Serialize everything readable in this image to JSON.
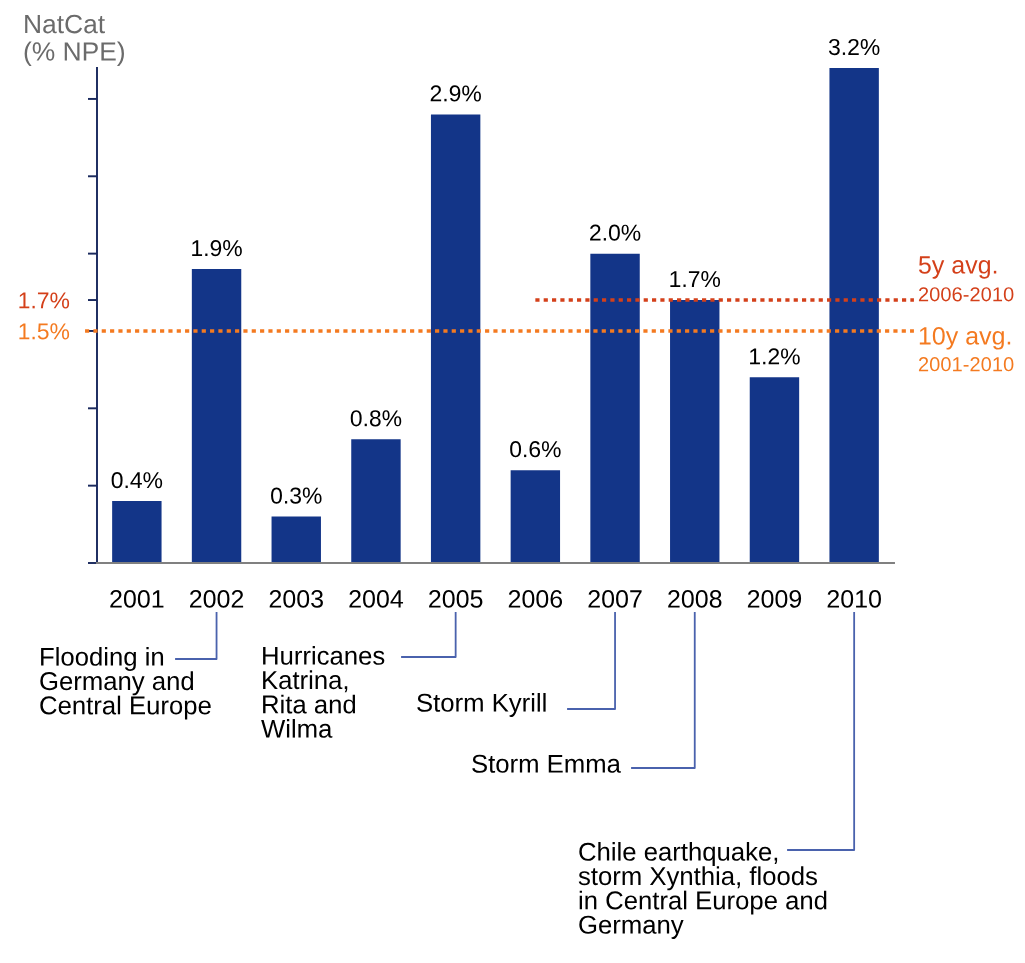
{
  "chart_data": {
    "type": "bar",
    "ylabel": "NatCat\n(% NPE)",
    "categories": [
      "2001",
      "2002",
      "2003",
      "2004",
      "2005",
      "2006",
      "2007",
      "2008",
      "2009",
      "2010"
    ],
    "series": [
      {
        "color": "#133588",
        "values": [
          0.4,
          1.9,
          0.3,
          0.8,
          2.9,
          0.6,
          2.0,
          1.7,
          1.2,
          3.2
        ],
        "value_labels": [
          "0.4%",
          "1.9%",
          "0.3%",
          "0.8%",
          "2.9%",
          "0.6%",
          "2.0%",
          "1.7%",
          "1.2%",
          "3.2%"
        ]
      },
      {
        "type": "step",
        "name": "5y avg.",
        "color": "#d4401a",
        "line_style": "dotted",
        "values": [
          null,
          null,
          null,
          null,
          null,
          1.7,
          1.7,
          1.7,
          1.7,
          1.7
        ]
      }
    ],
    "ylim": [
      0,
      3.2
    ],
    "yticks": [
      {
        "value": 0,
        "label": null
      },
      {
        "value": 0.5,
        "label": null
      },
      {
        "value": 1.0,
        "label": null
      },
      {
        "value": 1.5,
        "label": "1.5%"
      },
      {
        "value": 1.7,
        "label": "1.7%"
      },
      {
        "value": 2.0,
        "label": null
      },
      {
        "value": 2.5,
        "label": null
      },
      {
        "value": 3.0,
        "label": null
      }
    ],
    "grid": false,
    "legend": false,
    "ref_lines": [
      {
        "axis": "y",
        "value": 1.5,
        "label": "10y avg.",
        "color": "#f47a20",
        "line_style": "dotted"
      }
    ],
    "annotations": [
      "2006-2010",
      "2001-2010",
      "Flooding in\nGermany and\nCentral Europe",
      "Hurricanes\nKatrina,\nRita and\nWilma",
      "Storm Kyrill",
      "Storm Emma",
      "Chile earthquake,\nstorm Xynthia, floods\nin Central Europe and\nGermany"
    ]
  }
}
